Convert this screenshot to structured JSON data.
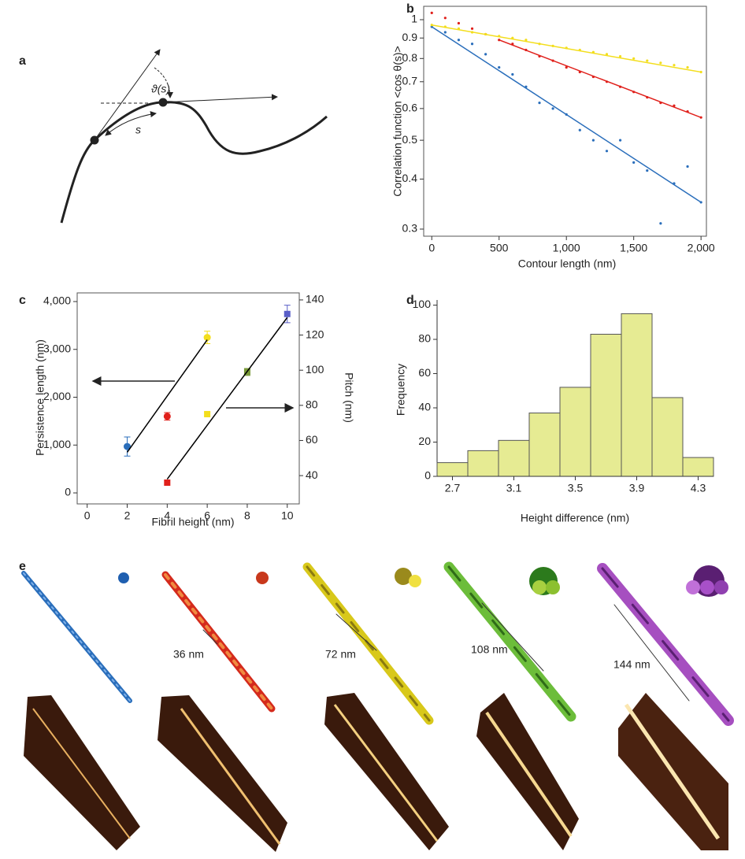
{
  "panels": {
    "a": {
      "label": "a",
      "angle": "ϑ(s)",
      "arc": "s"
    },
    "e": {
      "label": "e",
      "scale_bars": [
        "36 nm",
        "72 nm",
        "108 nm",
        "144 nm"
      ]
    }
  },
  "chart_data": [
    {
      "type": "scatter",
      "label": "b",
      "x_label": "Contour length (nm)",
      "y_label": "Correlation function <cos θ(s)>",
      "log_y": true,
      "xlim": [
        -60,
        2040
      ],
      "ylim": [
        0.288,
        1.08
      ],
      "xticks": [
        0,
        500,
        {
          "value": 1000,
          "label": "1,000"
        },
        {
          "value": 1500,
          "label": "1,500"
        },
        {
          "value": 2000,
          "label": "2,000"
        }
      ],
      "yticks": [
        0.3,
        0.4,
        0.5,
        0.6,
        0.7,
        0.8,
        0.9,
        1
      ],
      "series": [
        {
          "mode": "markers",
          "color": "#2a6ebb",
          "x": [
            0,
            100,
            200,
            300,
            400,
            500,
            600,
            700,
            800,
            900,
            1000,
            1100,
            1200,
            1300,
            1400,
            1500,
            1600,
            1700,
            1800,
            1900,
            2000
          ],
          "values": [
            0.96,
            0.93,
            0.89,
            0.87,
            0.82,
            0.76,
            0.73,
            0.68,
            0.62,
            0.6,
            0.58,
            0.53,
            0.5,
            0.47,
            0.5,
            0.44,
            0.42,
            0.31,
            0.39,
            0.43,
            0.35
          ]
        },
        {
          "mode": "markers",
          "color": "#e0201b",
          "x": [
            0,
            100,
            200,
            300,
            400,
            500,
            600,
            700,
            800,
            900,
            1000,
            1100,
            1200,
            1300,
            1400,
            1500,
            1600,
            1700,
            1800,
            1900,
            2000
          ],
          "values": [
            1.04,
            1.01,
            0.98,
            0.95,
            0.92,
            0.89,
            0.87,
            0.84,
            0.81,
            0.79,
            0.76,
            0.74,
            0.72,
            0.7,
            0.68,
            0.66,
            0.64,
            0.62,
            0.61,
            0.59,
            0.57
          ]
        },
        {
          "mode": "markers",
          "color": "#f3de1c",
          "x": [
            0,
            100,
            200,
            300,
            400,
            500,
            600,
            700,
            800,
            900,
            1000,
            1100,
            1200,
            1300,
            1400,
            1500,
            1600,
            1700,
            1800,
            1900,
            2000
          ],
          "values": [
            0.97,
            0.96,
            0.95,
            0.93,
            0.92,
            0.91,
            0.9,
            0.89,
            0.87,
            0.86,
            0.85,
            0.84,
            0.83,
            0.82,
            0.81,
            0.8,
            0.79,
            0.78,
            0.77,
            0.76,
            0.74
          ]
        },
        {
          "mode": "line",
          "color": "#2a6ebb",
          "x": [
            0,
            2000
          ],
          "values": [
            0.96,
            0.35
          ]
        },
        {
          "mode": "line",
          "color": "#e0201b",
          "x": [
            500,
            2000
          ],
          "values": [
            0.89,
            0.57
          ]
        },
        {
          "mode": "line",
          "color": "#f3de1c",
          "x": [
            0,
            2000
          ],
          "values": [
            0.97,
            0.74
          ]
        }
      ]
    },
    {
      "type": "scatter",
      "label": "c",
      "x_label": "Fibril height (nm)",
      "y_label": "Persistence length (nm)",
      "y2_label": "Pitch (nm)",
      "xlim": [
        -0.5,
        10.6
      ],
      "ylim": [
        -230,
        4181
      ],
      "y2lim": [
        23.9,
        144
      ],
      "xticks": [
        0,
        2,
        4,
        6,
        8,
        10
      ],
      "yticks": [
        0,
        {
          "value": 1000,
          "label": "1,000"
        },
        {
          "value": 2000,
          "label": "2,000"
        },
        {
          "value": 3000,
          "label": "3,000"
        },
        {
          "value": 4000,
          "label": "4,000"
        }
      ],
      "y2ticks": [
        40,
        60,
        80,
        100,
        120,
        140
      ],
      "series": [
        {
          "mode": "markers",
          "marker": "circle",
          "colors": [
            "#2a6ebb",
            "#e0201b",
            "#f3de1c"
          ],
          "x": [
            2,
            4,
            6
          ],
          "values": [
            970,
            1600,
            3250
          ],
          "errors": [
            200,
            80,
            130
          ]
        },
        {
          "mode": "markers",
          "marker": "square",
          "axis": "y2",
          "colors": [
            "#e0201b",
            "#f3de1c",
            "#7a9a3a",
            "#5a5fc8"
          ],
          "x": [
            4,
            6,
            8,
            10
          ],
          "values": [
            36,
            75,
            99,
            132
          ],
          "errors": [
            null,
            1,
            2,
            5
          ]
        },
        {
          "mode": "line",
          "color": "#000000",
          "x": [
            2,
            6
          ],
          "values": [
            850,
            3200
          ]
        },
        {
          "mode": "line",
          "color": "#000000",
          "axis": "y2",
          "x": [
            4,
            10
          ],
          "values": [
            38,
            130
          ]
        }
      ]
    },
    {
      "type": "histogram",
      "label": "d",
      "x_label": "Height difference (nm)",
      "y_label": "Frequency",
      "color": "#e6eb93",
      "bins": [
        2.6,
        2.8,
        3.0,
        3.2,
        3.4,
        3.6,
        3.8,
        4.0,
        4.2,
        4.4
      ],
      "values": [
        8,
        15,
        21,
        37,
        52,
        83,
        95,
        46,
        11
      ],
      "xlim": [
        2.6,
        4.4
      ],
      "ylim": [
        0,
        103
      ],
      "xticks": [
        2.7,
        3.1,
        3.5,
        3.9,
        4.3
      ],
      "yticks": [
        0,
        20,
        40,
        60,
        80,
        100
      ]
    }
  ]
}
